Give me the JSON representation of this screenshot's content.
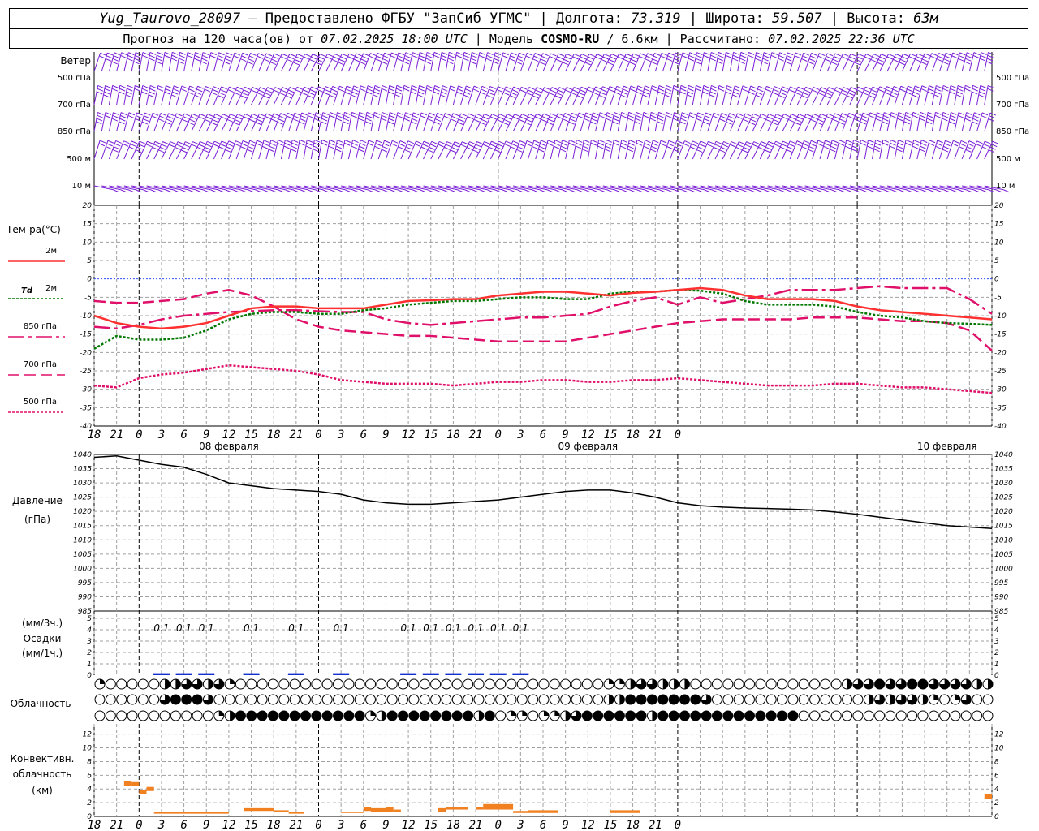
{
  "header": {
    "station": "Yug_Taurovo_28097",
    "provided_by": " – Предоставлено ФГБУ \"ЗапСиб УГМС\" | Долгота: ",
    "lon": "73.319",
    "lat_label": " | Широта: ",
    "lat": "59.507",
    "alt_label": " | Высота: ",
    "alt": "63м",
    "forecast_label": "Прогноз на 120 часа(ов) от ",
    "forecast_start": "07.02.2025 18:00 UTC",
    "model_label": " | Модель ",
    "model": "COSMO-RU",
    "model_res": " / 6.6км",
    "computed_label": " | Рассчитано: ",
    "computed": "07.02.2025 22:36 UTC"
  },
  "colors": {
    "wind": "#7a1fd6",
    "t2m": "#ff3030",
    "td2m": "#007700",
    "t850": "#e0106a",
    "t700": "#e0106a",
    "t500": "#e0106a",
    "pressure": "#000000",
    "precip": "#1030d0",
    "conv": "#f08020",
    "grid": "#a0a0a0"
  },
  "time_axis": {
    "hour_labels": [
      "18",
      "21",
      "0",
      "3",
      "6",
      "9",
      "12",
      "15",
      "18",
      "21",
      "0",
      "3",
      "6",
      "9",
      "12",
      "15",
      "18",
      "21",
      "0",
      "3",
      "6",
      "9",
      "12",
      "15",
      "18",
      "21",
      "0"
    ],
    "day_labels": [
      "08 февраля",
      "09 февраля",
      "10 февраля"
    ]
  },
  "wind_panel": {
    "title": "Ветер",
    "levels": [
      "500 гПа",
      "700 гПа",
      "850 гПа",
      "500 м",
      "10 м"
    ]
  },
  "temp_panel": {
    "title": "Тем-ра(°C)",
    "ticks": [
      "20",
      "15",
      "10",
      "5",
      "0",
      "-5",
      "-10",
      "-15",
      "-20",
      "-25",
      "-30",
      "-35",
      "-40"
    ],
    "legend": [
      "2м",
      "2м",
      "850 гПа",
      "700 гПа",
      "500 гПа"
    ],
    "td_symbol": "Td"
  },
  "pressure_panel": {
    "title1": "Давление",
    "title2": "(гПа)",
    "ticks": [
      "1040",
      "1035",
      "1030",
      "1025",
      "1020",
      "1015",
      "1010",
      "1005",
      "1000",
      "995",
      "990",
      "985"
    ]
  },
  "precip_panel": {
    "title1": "(мм/3ч.)",
    "title2": "Осадки",
    "title3": "(мм/1ч.)",
    "ticks": [
      "5",
      "4",
      "3",
      "2",
      "1",
      "0"
    ],
    "labels": [
      {
        "h": 9,
        "v": "0.1"
      },
      {
        "h": 12,
        "v": "0.1"
      },
      {
        "h": 15,
        "v": "0.1"
      },
      {
        "h": 21,
        "v": "0.1"
      },
      {
        "h": 27,
        "v": "0.1"
      },
      {
        "h": 33,
        "v": "0.1"
      },
      {
        "h": 42,
        "v": "0.1"
      },
      {
        "h": 45,
        "v": "0.1"
      },
      {
        "h": 48,
        "v": "0.1"
      },
      {
        "h": 51,
        "v": "0.1"
      },
      {
        "h": 54,
        "v": "0.1"
      },
      {
        "h": 57,
        "v": "0.1"
      }
    ]
  },
  "cloud_panel": {
    "title": "Облачность"
  },
  "conv_panel": {
    "title1": "Конвективн.",
    "title2": "облачность",
    "title3": "(км)",
    "ticks": [
      "12",
      "10",
      "8",
      "6",
      "4",
      "2",
      "0"
    ]
  },
  "chart_data": [
    {
      "type": "line",
      "title": "Тем-ра(°C)",
      "x_unit": "hours from 07.02.2025 18:00 UTC",
      "ylim": [
        -40,
        20
      ],
      "series": [
        {
          "name": "2м",
          "x": [
            0,
            3,
            6,
            9,
            12,
            15,
            18,
            21,
            24,
            27,
            30,
            33,
            36,
            39,
            42,
            45,
            48,
            51,
            54,
            57,
            60,
            63,
            66,
            69,
            72,
            75,
            78,
            81,
            84,
            87,
            90,
            93,
            96,
            99,
            102,
            105,
            108,
            111,
            114,
            117,
            120
          ],
          "values": [
            -10,
            -12,
            -13,
            -13.5,
            -13,
            -12,
            -10,
            -8,
            -7.5,
            -7.5,
            -8,
            -8,
            -8,
            -7,
            -6,
            -5.8,
            -5.5,
            -5.5,
            -4.5,
            -4,
            -3.5,
            -3.5,
            -4,
            -4.5,
            -3.8,
            -3.5,
            -3,
            -2.5,
            -3,
            -4.5,
            -5.5,
            -5.5,
            -5.5,
            -6,
            -7.5,
            -8.5,
            -9,
            -9.5,
            -10,
            -10.5,
            -11
          ]
        },
        {
          "name": "Td 2м",
          "x": [
            0,
            3,
            6,
            9,
            12,
            15,
            18,
            21,
            24,
            27,
            30,
            33,
            36,
            39,
            42,
            45,
            48,
            51,
            54,
            57,
            60,
            63,
            66,
            69,
            72,
            75,
            78,
            81,
            84,
            87,
            90,
            93,
            96,
            99,
            102,
            105,
            108,
            111,
            114,
            117,
            120
          ],
          "values": [
            -19,
            -15.5,
            -16.5,
            -16.5,
            -16,
            -14,
            -11,
            -9.5,
            -9,
            -9,
            -9.5,
            -9.5,
            -8.5,
            -8,
            -7,
            -6.5,
            -6,
            -6,
            -5.5,
            -5,
            -5,
            -5.5,
            -5.5,
            -4,
            -3.5,
            -3.5,
            -3,
            -3.2,
            -4,
            -6,
            -7,
            -7,
            -7,
            -7.5,
            -9,
            -10,
            -10.5,
            -11.5,
            -12,
            -12.2,
            -12.5
          ]
        },
        {
          "name": "850 гПа",
          "x": [
            0,
            3,
            6,
            9,
            12,
            15,
            18,
            21,
            24,
            27,
            30,
            33,
            36,
            39,
            42,
            45,
            48,
            51,
            54,
            57,
            60,
            63,
            66,
            69,
            72,
            75,
            78,
            81,
            84,
            87,
            90,
            93,
            96,
            99,
            102,
            105,
            108,
            111,
            114,
            117,
            120
          ],
          "values": [
            -13,
            -13.5,
            -12.5,
            -11,
            -10,
            -9.5,
            -9,
            -8.8,
            -8.5,
            -8.5,
            -8.8,
            -9,
            -9,
            -11,
            -12,
            -12.5,
            -12,
            -11.5,
            -11,
            -10.5,
            -10.5,
            -10,
            -9.5,
            -7.5,
            -6,
            -5,
            -7,
            -5,
            -6.5,
            -5.5,
            -4.5,
            -3,
            -3,
            -3,
            -2.5,
            -2,
            -2.5,
            -2.5,
            -2.5,
            -5.5,
            -9.5
          ]
        },
        {
          "name": "700 гПа",
          "x": [
            0,
            3,
            6,
            9,
            12,
            15,
            18,
            21,
            24,
            27,
            30,
            33,
            36,
            39,
            42,
            45,
            48,
            51,
            54,
            57,
            60,
            63,
            66,
            69,
            72,
            75,
            78,
            81,
            84,
            87,
            90,
            93,
            96,
            99,
            102,
            105,
            108,
            111,
            114,
            117,
            120
          ],
          "values": [
            -6,
            -6.5,
            -6.5,
            -6,
            -5.5,
            -4,
            -3,
            -4.5,
            -7.5,
            -11,
            -13,
            -14,
            -14.5,
            -15,
            -15.5,
            -15.5,
            -16,
            -16.5,
            -17,
            -17,
            -17,
            -17,
            -16,
            -15,
            -14,
            -13,
            -12,
            -11.5,
            -11,
            -11,
            -11,
            -11,
            -10.5,
            -10.5,
            -10.5,
            -11,
            -11.5,
            -11.5,
            -12,
            -14,
            -19.5
          ]
        },
        {
          "name": "500 гПа",
          "x": [
            0,
            3,
            6,
            9,
            12,
            15,
            18,
            21,
            24,
            27,
            30,
            33,
            36,
            39,
            42,
            45,
            48,
            51,
            54,
            57,
            60,
            63,
            66,
            69,
            72,
            75,
            78,
            81,
            84,
            87,
            90,
            93,
            96,
            99,
            102,
            105,
            108,
            111,
            114,
            117,
            120
          ],
          "values": [
            -29,
            -29.5,
            -27,
            -26,
            -25.5,
            -24.5,
            -23.5,
            -24,
            -24.5,
            -25,
            -26,
            -27.5,
            -28,
            -28.5,
            -28.5,
            -28.5,
            -29,
            -28.5,
            -28,
            -28,
            -27.5,
            -27.5,
            -28,
            -28,
            -27.5,
            -27.5,
            -27,
            -27.5,
            -28,
            -28.5,
            -29,
            -29,
            -29,
            -28.5,
            -28.5,
            -29,
            -29.5,
            -29.5,
            -30,
            -30.5,
            -31
          ]
        }
      ]
    },
    {
      "type": "line",
      "title": "Давление",
      "ylabel": "(гПа)",
      "ylim": [
        985,
        1040
      ],
      "series": [
        {
          "name": "",
          "x": [
            0,
            3,
            6,
            9,
            12,
            15,
            18,
            21,
            24,
            27,
            30,
            33,
            36,
            39,
            42,
            45,
            48,
            51,
            54,
            57,
            60,
            63,
            66,
            69,
            72,
            75,
            78,
            81,
            84,
            87,
            90,
            93,
            96,
            99,
            102,
            105,
            108,
            111,
            114,
            117,
            120
          ],
          "values": [
            1039,
            1039.5,
            1038,
            1036.5,
            1035.5,
            1033,
            1030,
            1029,
            1028,
            1027.5,
            1027,
            1026,
            1024,
            1023,
            1022.5,
            1022.5,
            1023,
            1023.5,
            1024,
            1025,
            1026,
            1027,
            1027.5,
            1027.5,
            1026.5,
            1025,
            1023,
            1022,
            1021.5,
            1021.2,
            1021,
            1020.8,
            1020.5,
            1019.8,
            1019,
            1018,
            1017,
            1016,
            1015,
            1014.5,
            1014
          ]
        }
      ]
    },
    {
      "type": "bar",
      "title": "Осадки",
      "ylabel": "(мм/3ч.)",
      "ylim": [
        0,
        5
      ],
      "x": [
        9,
        12,
        15,
        21,
        27,
        33,
        42,
        45,
        48,
        51,
        54,
        57
      ],
      "values": [
        0.1,
        0.1,
        0.1,
        0.1,
        0.1,
        0.1,
        0.1,
        0.1,
        0.1,
        0.1,
        0.1,
        0.1
      ]
    },
    {
      "type": "heatmap",
      "title": "Облачность",
      "rows": 3,
      "hours": 120,
      "cover_upper": [
        0.25,
        0,
        0,
        0,
        0,
        0,
        0,
        0,
        0.5,
        0.5,
        0.5,
        0.75,
        1,
        0.75,
        0.5,
        0.25,
        0.75,
        0.25,
        0,
        0,
        0,
        0,
        0,
        0,
        0,
        0,
        0,
        0,
        0,
        0,
        0,
        0,
        0,
        0,
        0,
        0,
        0,
        0,
        0,
        0,
        0,
        0,
        0,
        0,
        0,
        0,
        0,
        0,
        0,
        0,
        0,
        0,
        0,
        0,
        0,
        0,
        0,
        0,
        0,
        0,
        0,
        0,
        0,
        0,
        0,
        0,
        0,
        0,
        0,
        0,
        0.25,
        0.25,
        0.75,
        0.5,
        0.75,
        0.75,
        0.75,
        0.5,
        0.5,
        0.5,
        0.5,
        0.5,
        0,
        0,
        0,
        0,
        0,
        0,
        0,
        0,
        0,
        0,
        0,
        0,
        0,
        0,
        0,
        0,
        0,
        0,
        0,
        0,
        0,
        0.5,
        0.75,
        0.75,
        0.75,
        1,
        1,
        0.75,
        0.75,
        1,
        1,
        1,
        1,
        0.75,
        0.75,
        1,
        0.75,
        0.75,
        0.75,
        0.5,
        0.5,
        0.5
      ],
      "cover_middle": [
        0,
        0,
        0,
        0,
        0,
        0,
        0,
        0,
        0.75,
        1,
        1,
        1,
        1,
        1,
        0.75,
        0.25,
        0,
        0,
        0,
        0,
        0,
        0,
        0,
        0,
        0,
        0,
        0,
        0,
        0,
        0,
        0,
        0,
        0,
        0,
        0,
        0,
        0,
        0,
        0,
        0,
        0,
        0,
        0,
        0,
        0,
        0,
        0,
        0,
        0,
        0,
        0,
        0,
        0,
        0,
        0,
        0,
        0,
        0,
        0,
        0,
        0,
        0,
        0,
        0,
        0,
        0,
        0,
        0,
        0,
        0,
        0.5,
        0.5,
        0.75,
        1,
        1,
        1,
        1,
        1,
        1,
        1,
        1,
        1,
        1,
        0.75,
        0,
        0,
        0,
        0,
        0,
        0,
        0,
        0,
        0,
        0,
        0,
        0,
        0,
        0,
        0,
        0,
        0,
        0,
        0,
        0,
        0,
        0,
        0.5,
        0.75,
        0.75,
        0.5,
        0.75,
        0.25,
        0.75,
        0.5,
        0,
        0.25,
        0,
        0.25,
        0.25,
        0.75,
        0,
        0,
        0,
        0
      ],
      "cover_lower": [
        0,
        0,
        0,
        0,
        0,
        0,
        0,
        0,
        0,
        0,
        0,
        0,
        0,
        0,
        0,
        0,
        0.25,
        0.5,
        1,
        1,
        1,
        1,
        1,
        1,
        1,
        1,
        1,
        1,
        1,
        1,
        1,
        1,
        1,
        1,
        1,
        1,
        1,
        0.25,
        0.5,
        1,
        1,
        1,
        1,
        1,
        1,
        1,
        1,
        1,
        1,
        1,
        1,
        0.25,
        0.5,
        1,
        0,
        0,
        0.25,
        0.5,
        0.25,
        0,
        0.5,
        0.25,
        0.25,
        0,
        0.5,
        0.75,
        1,
        1,
        1,
        1,
        1,
        1,
        1,
        1,
        1,
        0.25,
        0.5,
        1,
        1,
        1,
        1,
        1,
        1,
        1,
        1,
        1,
        1,
        1,
        1,
        1,
        1,
        1,
        1,
        1,
        1,
        1,
        1,
        0,
        0,
        0,
        0,
        0,
        0,
        0,
        0,
        0,
        0,
        0,
        0,
        0,
        0,
        0,
        0,
        0,
        0,
        0,
        0,
        0,
        0,
        0,
        0,
        0,
        0,
        0
      ]
    },
    {
      "type": "bar",
      "title": "Конвективн. облачность",
      "ylabel": "(км)",
      "ylim": [
        0,
        13
      ],
      "segments": [
        {
          "x0": 4,
          "x1": 5,
          "bottom": 4.5,
          "top": 5.2
        },
        {
          "x0": 5,
          "x1": 6,
          "bottom": 4.5,
          "top": 5.0
        },
        {
          "x0": 6,
          "x1": 7,
          "bottom": 3.2,
          "top": 3.8
        },
        {
          "x0": 7,
          "x1": 8,
          "bottom": 3.7,
          "top": 4.3
        },
        {
          "x0": 8,
          "x1": 18,
          "bottom": 0.4,
          "top": 0.6
        },
        {
          "x0": 20,
          "x1": 24,
          "bottom": 0.8,
          "top": 1.2
        },
        {
          "x0": 24,
          "x1": 26,
          "bottom": 0.6,
          "top": 0.9
        },
        {
          "x0": 26,
          "x1": 28,
          "bottom": 0.4,
          "top": 0.6
        },
        {
          "x0": 33,
          "x1": 36,
          "bottom": 0.5,
          "top": 0.7
        },
        {
          "x0": 36,
          "x1": 37,
          "bottom": 0.8,
          "top": 1.3
        },
        {
          "x0": 37,
          "x1": 39,
          "bottom": 0.6,
          "top": 1.2
        },
        {
          "x0": 39,
          "x1": 40,
          "bottom": 0.7,
          "top": 1.4
        },
        {
          "x0": 40,
          "x1": 41,
          "bottom": 0.7,
          "top": 1.0
        },
        {
          "x0": 46,
          "x1": 47,
          "bottom": 0.6,
          "top": 1.2
        },
        {
          "x0": 47,
          "x1": 50,
          "bottom": 1.0,
          "top": 1.3
        },
        {
          "x0": 51,
          "x1": 52,
          "bottom": 1.0,
          "top": 1.3
        },
        {
          "x0": 52,
          "x1": 56,
          "bottom": 1.0,
          "top": 1.8
        },
        {
          "x0": 56,
          "x1": 58,
          "bottom": 0.5,
          "top": 0.8
        },
        {
          "x0": 58,
          "x1": 62,
          "bottom": 0.5,
          "top": 0.9
        },
        {
          "x0": 69,
          "x1": 73,
          "bottom": 0.5,
          "top": 0.9
        },
        {
          "x0": 119,
          "x1": 120,
          "bottom": 2.6,
          "top": 3.2
        }
      ]
    }
  ]
}
